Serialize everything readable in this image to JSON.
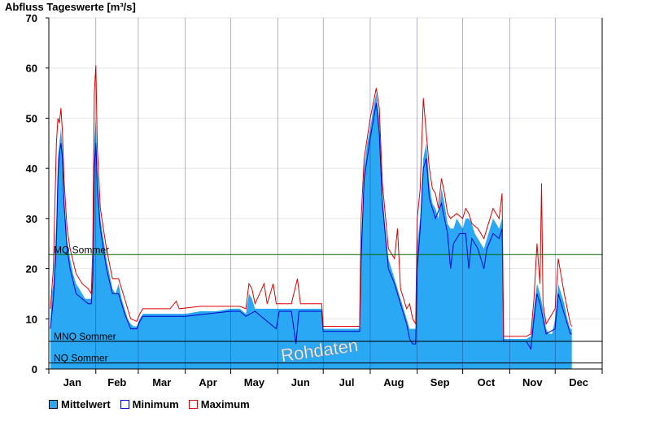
{
  "chart_data": {
    "type": "area",
    "title": "Abfluss Tageswerte [m³/s]",
    "ylim": [
      0,
      70
    ],
    "yticks": [
      0,
      10,
      20,
      30,
      40,
      50,
      60,
      70
    ],
    "months": [
      "Jan",
      "Feb",
      "Mar",
      "Apr",
      "May",
      "Jun",
      "Jul",
      "Aug",
      "Sep",
      "Oct",
      "Nov",
      "Dec"
    ],
    "grid": "horizontal",
    "reference_lines": [
      {
        "label": "MQ Sommer",
        "value": 22.8,
        "color": "#006400"
      },
      {
        "label": "MNQ Sommer",
        "value": 5.5,
        "color": "#000000"
      },
      {
        "label": "NQ Sommer",
        "value": 1.2,
        "color": "#000000"
      }
    ],
    "watermark": "Rohdaten",
    "legend": {
      "position": "bottom-left",
      "items": [
        {
          "label": "Mittelwert",
          "color": "#2aa8f4"
        },
        {
          "label": "Minimum",
          "color": "#0000cc"
        },
        {
          "label": "Maximum",
          "color": "#dd0000"
        }
      ]
    },
    "series": [
      {
        "name": "Mittelwert",
        "color": "#2aa8f4",
        "points": [
          [
            1,
            10
          ],
          [
            2,
            15
          ],
          [
            3,
            17
          ],
          [
            5,
            30
          ],
          [
            6,
            42
          ],
          [
            7,
            45
          ],
          [
            8,
            48
          ],
          [
            9,
            44
          ],
          [
            10,
            35
          ],
          [
            12,
            26
          ],
          [
            14,
            22
          ],
          [
            16,
            19
          ],
          [
            18,
            17
          ],
          [
            20,
            16
          ],
          [
            22,
            15
          ],
          [
            24,
            14
          ],
          [
            26,
            14
          ],
          [
            28,
            14
          ],
          [
            29,
            20
          ],
          [
            30,
            45
          ],
          [
            31,
            50
          ],
          [
            32,
            40
          ],
          [
            34,
            30
          ],
          [
            36,
            26
          ],
          [
            38,
            22
          ],
          [
            40,
            19
          ],
          [
            42,
            16
          ],
          [
            44,
            15
          ],
          [
            46,
            17
          ],
          [
            48,
            14
          ],
          [
            50,
            12
          ],
          [
            52,
            10
          ],
          [
            54,
            9
          ],
          [
            56,
            8.5
          ],
          [
            58,
            8.5
          ],
          [
            60,
            10
          ],
          [
            62,
            11
          ],
          [
            70,
            11
          ],
          [
            80,
            11
          ],
          [
            90,
            11
          ],
          [
            100,
            11.5
          ],
          [
            110,
            11.5
          ],
          [
            120,
            12
          ],
          [
            126,
            12
          ],
          [
            130,
            11
          ],
          [
            132,
            15
          ],
          [
            134,
            14
          ],
          [
            136,
            12
          ],
          [
            140,
            12
          ],
          [
            150,
            12
          ],
          [
            160,
            12
          ],
          [
            170,
            12
          ],
          [
            180,
            12
          ],
          [
            181,
            8
          ],
          [
            190,
            8
          ],
          [
            200,
            8
          ],
          [
            205,
            8
          ],
          [
            206,
            25
          ],
          [
            208,
            40
          ],
          [
            210,
            45
          ],
          [
            212,
            48
          ],
          [
            214,
            52
          ],
          [
            216,
            55
          ],
          [
            218,
            50
          ],
          [
            220,
            35
          ],
          [
            222,
            28
          ],
          [
            224,
            22
          ],
          [
            226,
            20
          ],
          [
            228,
            18
          ],
          [
            230,
            16
          ],
          [
            232,
            14
          ],
          [
            234,
            12
          ],
          [
            236,
            10
          ],
          [
            238,
            8
          ],
          [
            240,
            8
          ],
          [
            242,
            8
          ],
          [
            243,
            25
          ],
          [
            245,
            30
          ],
          [
            247,
            42
          ],
          [
            249,
            45
          ],
          [
            251,
            37
          ],
          [
            253,
            33
          ],
          [
            255,
            32
          ],
          [
            257,
            30
          ],
          [
            259,
            36
          ],
          [
            261,
            33
          ],
          [
            263,
            29
          ],
          [
            265,
            28
          ],
          [
            267,
            28
          ],
          [
            269,
            30
          ],
          [
            271,
            29
          ],
          [
            273,
            28
          ],
          [
            275,
            30
          ],
          [
            277,
            30
          ],
          [
            279,
            29
          ],
          [
            281,
            27
          ],
          [
            283,
            26
          ],
          [
            285,
            25
          ],
          [
            287,
            24
          ],
          [
            289,
            26
          ],
          [
            291,
            28
          ],
          [
            293,
            30
          ],
          [
            295,
            29
          ],
          [
            297,
            28
          ],
          [
            299,
            30
          ],
          [
            300,
            6
          ],
          [
            305,
            6
          ],
          [
            310,
            6
          ],
          [
            315,
            6
          ],
          [
            318,
            6.5
          ],
          [
            320,
            12
          ],
          [
            322,
            17
          ],
          [
            324,
            15
          ],
          [
            326,
            12
          ],
          [
            328,
            8
          ],
          [
            330,
            7
          ],
          [
            332,
            7
          ],
          [
            334,
            10
          ],
          [
            336,
            17
          ],
          [
            338,
            15
          ],
          [
            340,
            13
          ],
          [
            342,
            10
          ],
          [
            344,
            8
          ],
          [
            345,
            8
          ]
        ]
      },
      {
        "name": "Minimum",
        "color": "#0000cc",
        "points": [
          [
            1,
            8
          ],
          [
            3,
            14
          ],
          [
            5,
            25
          ],
          [
            6,
            38
          ],
          [
            7,
            43
          ],
          [
            8,
            45
          ],
          [
            9,
            42
          ],
          [
            10,
            33
          ],
          [
            12,
            24
          ],
          [
            14,
            20
          ],
          [
            18,
            15
          ],
          [
            22,
            14
          ],
          [
            26,
            13
          ],
          [
            28,
            13
          ],
          [
            29,
            18
          ],
          [
            30,
            40
          ],
          [
            31,
            45
          ],
          [
            32,
            36
          ],
          [
            34,
            28
          ],
          [
            38,
            20
          ],
          [
            42,
            15
          ],
          [
            46,
            15
          ],
          [
            50,
            11
          ],
          [
            54,
            8
          ],
          [
            58,
            8
          ],
          [
            60,
            9.5
          ],
          [
            62,
            10.5
          ],
          [
            90,
            10.5
          ],
          [
            120,
            11.5
          ],
          [
            126,
            11.5
          ],
          [
            130,
            10.5
          ],
          [
            136,
            11.5
          ],
          [
            150,
            8
          ],
          [
            152,
            11.5
          ],
          [
            160,
            11.5
          ],
          [
            163,
            5
          ],
          [
            165,
            11.5
          ],
          [
            180,
            11.5
          ],
          [
            181,
            7.5
          ],
          [
            205,
            7.5
          ],
          [
            206,
            22
          ],
          [
            208,
            38
          ],
          [
            212,
            46
          ],
          [
            216,
            53
          ],
          [
            218,
            47
          ],
          [
            220,
            33
          ],
          [
            224,
            20
          ],
          [
            228,
            17
          ],
          [
            232,
            13
          ],
          [
            236,
            9
          ],
          [
            238,
            6
          ],
          [
            240,
            5
          ],
          [
            242,
            5
          ],
          [
            243,
            20
          ],
          [
            245,
            28
          ],
          [
            247,
            40
          ],
          [
            249,
            42
          ],
          [
            251,
            34
          ],
          [
            255,
            30
          ],
          [
            259,
            33
          ],
          [
            263,
            27
          ],
          [
            265,
            20
          ],
          [
            267,
            25
          ],
          [
            271,
            27
          ],
          [
            275,
            27
          ],
          [
            277,
            20
          ],
          [
            279,
            26
          ],
          [
            283,
            24
          ],
          [
            287,
            20
          ],
          [
            289,
            24
          ],
          [
            293,
            27
          ],
          [
            297,
            26
          ],
          [
            299,
            28
          ],
          [
            300,
            5.5
          ],
          [
            315,
            5.5
          ],
          [
            318,
            4
          ],
          [
            320,
            10
          ],
          [
            322,
            15
          ],
          [
            324,
            13
          ],
          [
            326,
            10
          ],
          [
            328,
            7
          ],
          [
            334,
            8
          ],
          [
            336,
            15
          ],
          [
            340,
            11
          ],
          [
            344,
            7
          ],
          [
            345,
            7
          ]
        ]
      },
      {
        "name": "Maximum",
        "color": "#dd0000",
        "points": [
          [
            1,
            12
          ],
          [
            3,
            20
          ],
          [
            5,
            45
          ],
          [
            6,
            50
          ],
          [
            7,
            49
          ],
          [
            8,
            52
          ],
          [
            9,
            47
          ],
          [
            10,
            38
          ],
          [
            12,
            28
          ],
          [
            14,
            24
          ],
          [
            18,
            19
          ],
          [
            22,
            17
          ],
          [
            26,
            16
          ],
          [
            28,
            15
          ],
          [
            29,
            24
          ],
          [
            30,
            55
          ],
          [
            31,
            60.5
          ],
          [
            32,
            44
          ],
          [
            34,
            32
          ],
          [
            38,
            24
          ],
          [
            42,
            18
          ],
          [
            46,
            18
          ],
          [
            50,
            14
          ],
          [
            54,
            10
          ],
          [
            58,
            9.5
          ],
          [
            60,
            11
          ],
          [
            62,
            12
          ],
          [
            80,
            12
          ],
          [
            84,
            13.5
          ],
          [
            86,
            12
          ],
          [
            100,
            12.5
          ],
          [
            126,
            12.5
          ],
          [
            130,
            12
          ],
          [
            132,
            17
          ],
          [
            134,
            16
          ],
          [
            136,
            13
          ],
          [
            142,
            17
          ],
          [
            144,
            13
          ],
          [
            148,
            17
          ],
          [
            150,
            13
          ],
          [
            160,
            13
          ],
          [
            164,
            18
          ],
          [
            166,
            13
          ],
          [
            180,
            13
          ],
          [
            181,
            8.5
          ],
          [
            205,
            8.5
          ],
          [
            206,
            30
          ],
          [
            208,
            42
          ],
          [
            212,
            50
          ],
          [
            216,
            56
          ],
          [
            218,
            52
          ],
          [
            220,
            37
          ],
          [
            224,
            24
          ],
          [
            228,
            22
          ],
          [
            230,
            28
          ],
          [
            232,
            16
          ],
          [
            236,
            12
          ],
          [
            238,
            13
          ],
          [
            240,
            10
          ],
          [
            242,
            9
          ],
          [
            243,
            30
          ],
          [
            245,
            36
          ],
          [
            247,
            54
          ],
          [
            249,
            47
          ],
          [
            251,
            40
          ],
          [
            253,
            36
          ],
          [
            255,
            35
          ],
          [
            257,
            32
          ],
          [
            259,
            38
          ],
          [
            261,
            35
          ],
          [
            263,
            31
          ],
          [
            265,
            30
          ],
          [
            269,
            31
          ],
          [
            273,
            30
          ],
          [
            275,
            32
          ],
          [
            277,
            31
          ],
          [
            279,
            29
          ],
          [
            283,
            28
          ],
          [
            287,
            26
          ],
          [
            289,
            28
          ],
          [
            293,
            32
          ],
          [
            295,
            31
          ],
          [
            297,
            30
          ],
          [
            299,
            35
          ],
          [
            300,
            6.5
          ],
          [
            315,
            6.5
          ],
          [
            318,
            7
          ],
          [
            320,
            14
          ],
          [
            322,
            25
          ],
          [
            324,
            17
          ],
          [
            325,
            37
          ],
          [
            326,
            13
          ],
          [
            328,
            9
          ],
          [
            334,
            12
          ],
          [
            336,
            22
          ],
          [
            340,
            15
          ],
          [
            344,
            9
          ],
          [
            345,
            8.5
          ]
        ]
      }
    ]
  }
}
